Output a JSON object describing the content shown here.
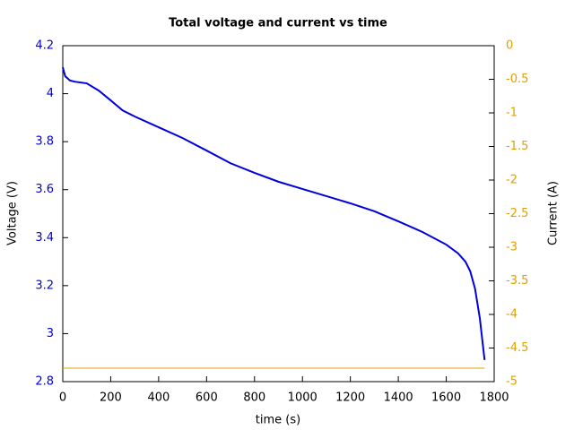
{
  "chart_data": {
    "type": "line",
    "title": "Total voltage and current vs time",
    "xlabel": "time (s)",
    "ylabel": "Voltage (V)",
    "y2label": "Current (A)",
    "x": [
      0,
      10,
      30,
      50,
      100,
      150,
      200,
      250,
      300,
      400,
      500,
      600,
      700,
      800,
      900,
      1000,
      1100,
      1200,
      1300,
      1400,
      1500,
      1600,
      1650,
      1680,
      1700,
      1720,
      1740,
      1760
    ],
    "series": [
      {
        "name": "Voltage",
        "color": "#0000dd",
        "axis": "y",
        "values": [
          4.11,
          4.073,
          4.055,
          4.05,
          4.043,
          4.013,
          3.972,
          3.93,
          3.905,
          3.86,
          3.815,
          3.763,
          3.71,
          3.67,
          3.633,
          3.603,
          3.573,
          3.543,
          3.51,
          3.468,
          3.424,
          3.371,
          3.334,
          3.3,
          3.26,
          3.188,
          3.065,
          2.89
        ]
      },
      {
        "name": "Current",
        "color": "#e0a000",
        "axis": "y2",
        "values": [
          -4.8,
          -4.8,
          -4.8,
          -4.8,
          -4.8,
          -4.8,
          -4.8,
          -4.8,
          -4.8,
          -4.8,
          -4.8,
          -4.8,
          -4.8,
          -4.8,
          -4.8,
          -4.8,
          -4.8,
          -4.8,
          -4.8,
          -4.8,
          -4.8,
          -4.8,
          -4.8,
          -4.8,
          -4.8,
          -4.8,
          -4.8,
          -4.8
        ]
      }
    ],
    "xlim": [
      0,
      1800
    ],
    "xticks": [
      0,
      200,
      400,
      600,
      800,
      1000,
      1200,
      1400,
      1600,
      1800
    ],
    "ylim": [
      2.8,
      4.2
    ],
    "yticks": [
      2.8,
      3,
      3.2,
      3.4,
      3.6,
      3.8,
      4,
      4.2
    ],
    "y2lim": [
      -5,
      0
    ],
    "y2ticks": [
      -5,
      -4.5,
      -4,
      -3.5,
      -3,
      -2.5,
      -2,
      -1.5,
      -1,
      -0.5,
      0
    ]
  }
}
